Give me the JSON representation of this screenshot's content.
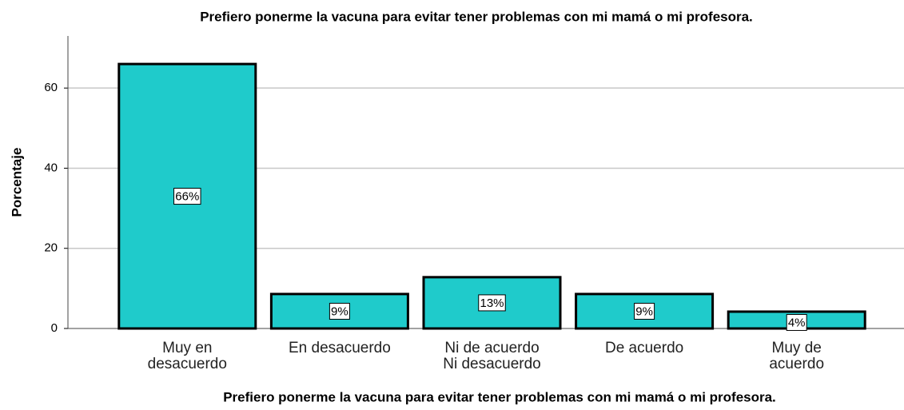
{
  "chart_data": {
    "type": "bar",
    "title": "Prefiero ponerme la vacuna para evitar tener problemas con mi mamá o mi profesora.",
    "xlabel": "Prefiero ponerme la vacuna para evitar tener problemas con mi mamá o mi profesora.",
    "ylabel": "Porcentaje",
    "categories": [
      [
        "Muy en",
        "desacuerdo"
      ],
      [
        "En desacuerdo"
      ],
      [
        "Ni de acuerdo",
        "Ni desacuerdo"
      ],
      [
        "De acuerdo"
      ],
      [
        "Muy de",
        "acuerdo"
      ]
    ],
    "values": [
      66,
      8.6,
      12.8,
      8.6,
      4.2
    ],
    "value_labels": [
      "66%",
      "9%",
      "13%",
      "9%",
      "4%"
    ],
    "color": "#1fcbcb",
    "ylim": [
      0,
      73
    ],
    "yticks": [
      0,
      20,
      40,
      60
    ],
    "grid": true
  }
}
